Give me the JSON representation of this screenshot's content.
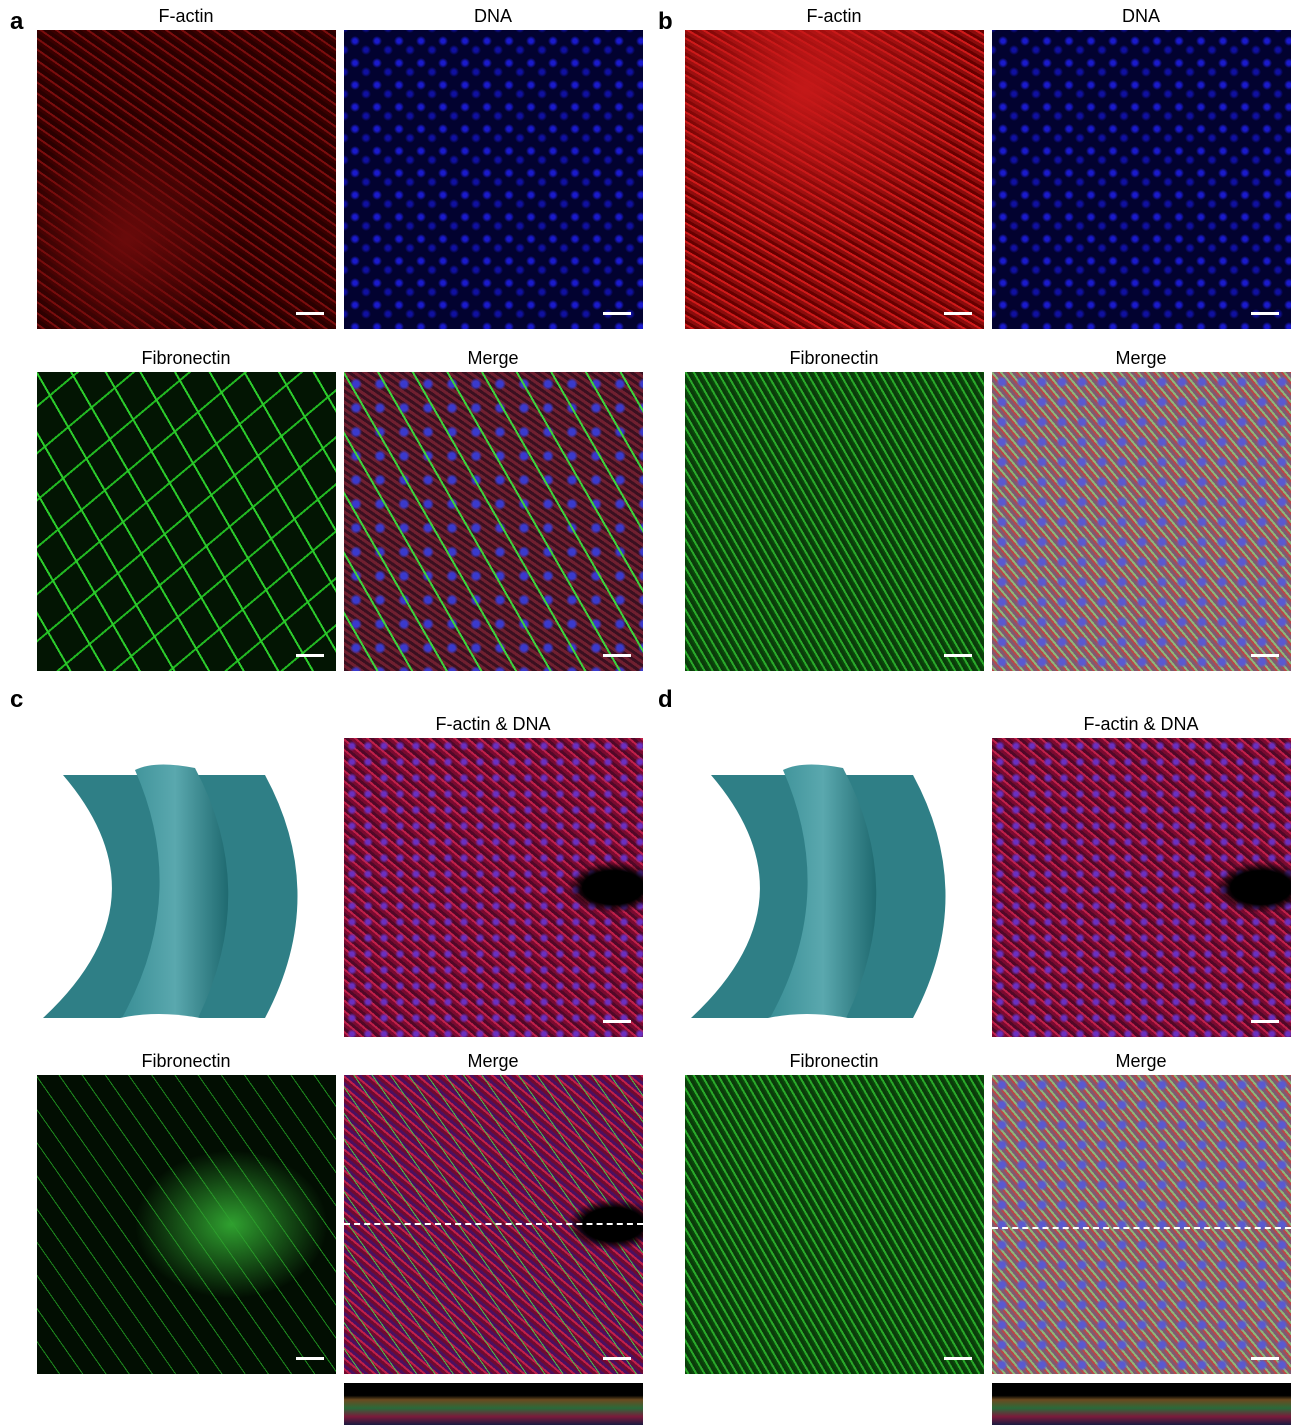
{
  "panels": [
    {
      "label": "a",
      "titles": [
        "F-actin",
        "DNA",
        "Fibronectin",
        "Merge"
      ]
    },
    {
      "label": "b",
      "titles": [
        "F-actin",
        "DNA",
        "Fibronectin",
        "Merge"
      ]
    },
    {
      "label": "c",
      "titles": [
        "F-actin & DNA",
        "Fibronectin",
        "Merge"
      ]
    },
    {
      "label": "d",
      "titles": [
        "F-actin & DNA",
        "Fibronectin",
        "Merge"
      ]
    }
  ]
}
